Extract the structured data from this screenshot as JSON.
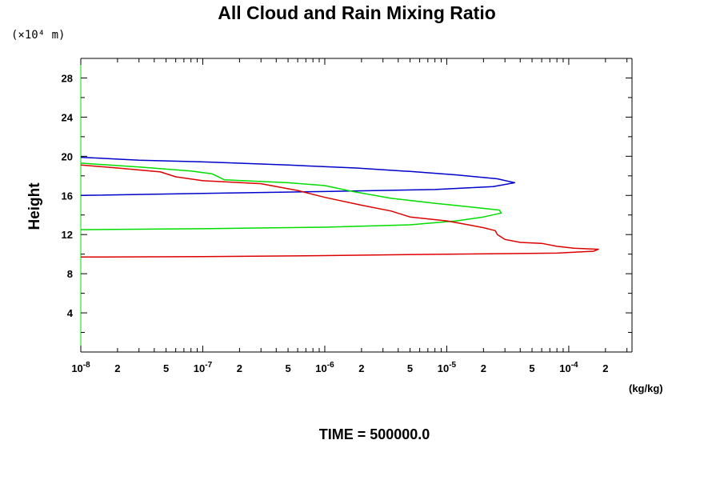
{
  "chart_data": {
    "type": "line",
    "title": "All Cloud and Rain Mixing Ratio",
    "y_unit_label": "(×10⁴ m)",
    "ylabel": "Height",
    "xunit": "(kg/kg)",
    "footer": "TIME = 500000.0",
    "x_scale": "log",
    "xlim": [
      1e-08,
      0.00033
    ],
    "ylim": [
      0,
      30
    ],
    "y_ticks": [
      4,
      8,
      12,
      16,
      20,
      24,
      28
    ],
    "y_tick_labels": [
      "4",
      "8",
      "12",
      "16",
      "20",
      "24",
      "28"
    ],
    "x_major_ticks": [
      {
        "base": "10",
        "exp": "-8"
      },
      {
        "base": "10",
        "exp": "-7"
      },
      {
        "base": "10",
        "exp": "-6"
      },
      {
        "base": "10",
        "exp": "-5"
      },
      {
        "base": "10",
        "exp": "-4"
      }
    ],
    "x_minor_labels": [
      "2",
      "5"
    ],
    "grid": false,
    "series": [
      {
        "color": "#0000cc",
        "points": [
          [
            1e-08,
            16.0
          ],
          [
            1e-07,
            16.2
          ],
          [
            1e-06,
            16.4
          ],
          [
            8e-06,
            16.6
          ],
          [
            2.4e-05,
            16.9
          ],
          [
            3.6e-05,
            17.3
          ],
          [
            2.6e-05,
            17.7
          ],
          [
            1.2e-05,
            18.1
          ],
          [
            5e-06,
            18.45
          ],
          [
            1.8e-06,
            18.8
          ],
          [
            5e-07,
            19.1
          ],
          [
            1.2e-07,
            19.4
          ],
          [
            3e-08,
            19.6
          ],
          [
            1e-08,
            19.9
          ]
        ]
      },
      {
        "color": "#00dd00",
        "points": [
          [
            1e-08,
            12.5
          ],
          [
            1e-07,
            12.6
          ],
          [
            1e-06,
            12.75
          ],
          [
            5e-06,
            13.0
          ],
          [
            1.2e-05,
            13.4
          ],
          [
            2e-05,
            13.8
          ],
          [
            2.8e-05,
            14.2
          ],
          [
            2.7e-05,
            14.5
          ],
          [
            1.6e-05,
            14.8
          ],
          [
            8e-06,
            15.2
          ],
          [
            3.5e-06,
            15.7
          ],
          [
            1.7e-06,
            16.4
          ],
          [
            1e-06,
            17.0
          ],
          [
            5e-07,
            17.3
          ],
          [
            1.5e-07,
            17.6
          ],
          [
            1.2e-07,
            18.2
          ],
          [
            8e-08,
            18.5
          ],
          [
            3e-08,
            18.9
          ],
          [
            1e-08,
            19.3
          ]
        ]
      },
      {
        "color": "#dd0000",
        "points": [
          [
            1e-08,
            9.7
          ],
          [
            1e-07,
            9.75
          ],
          [
            1e-06,
            9.85
          ],
          [
            1e-05,
            10.0
          ],
          [
            8e-05,
            10.1
          ],
          [
            0.00016,
            10.3
          ],
          [
            0.000175,
            10.5
          ],
          [
            0.00011,
            10.6
          ],
          [
            8e-05,
            10.8
          ],
          [
            6e-05,
            11.1
          ],
          [
            4e-05,
            11.2
          ],
          [
            3e-05,
            11.5
          ],
          [
            2.6e-05,
            12.0
          ],
          [
            2.5e-05,
            12.4
          ],
          [
            2e-05,
            12.7
          ],
          [
            1.5e-05,
            13.0
          ],
          [
            1e-05,
            13.4
          ],
          [
            5e-06,
            13.8
          ],
          [
            3.5e-06,
            14.4
          ],
          [
            2e-06,
            15.0
          ],
          [
            1e-06,
            15.8
          ],
          [
            6e-07,
            16.5
          ],
          [
            3e-07,
            17.2
          ],
          [
            1e-07,
            17.5
          ],
          [
            6e-08,
            17.9
          ],
          [
            4.5e-08,
            18.4
          ],
          [
            2e-08,
            18.8
          ],
          [
            1e-08,
            19.1
          ]
        ]
      }
    ]
  }
}
